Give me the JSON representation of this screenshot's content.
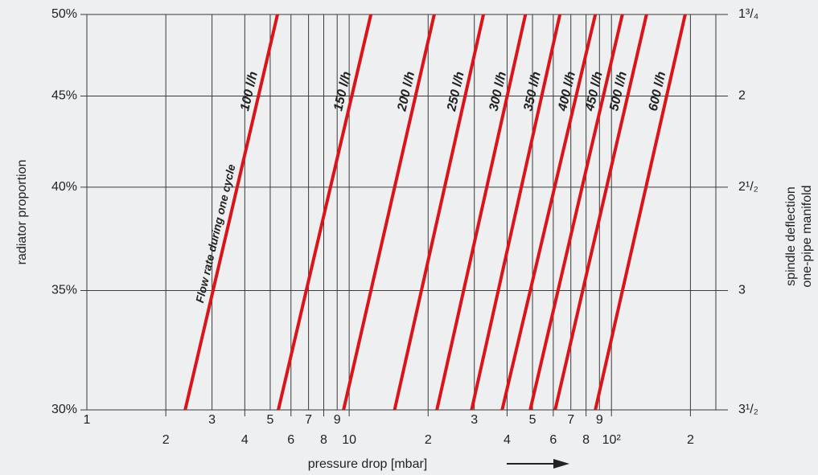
{
  "chart_data": {
    "type": "line",
    "xlabel": "pressure drop [mbar]",
    "ylabel": "radiator proportion",
    "y2label": [
      "spindle deflection",
      "one-pipe manifold"
    ],
    "xlog": true,
    "ylog": true,
    "grid": true,
    "xlim": [
      1,
      250
    ],
    "ylim": [
      30,
      50
    ],
    "xticks": [
      1,
      2,
      3,
      4,
      5,
      6,
      7,
      8,
      9,
      10,
      {
        "value": 20,
        "label": "2"
      },
      {
        "value": 30,
        "label": "3"
      },
      {
        "value": 40,
        "label": "4"
      },
      {
        "value": 50,
        "label": "5"
      },
      {
        "value": 60,
        "label": "6"
      },
      {
        "value": 70,
        "label": "7"
      },
      {
        "value": 80,
        "label": "8"
      },
      {
        "value": 90,
        "label": "9"
      },
      {
        "value": 100,
        "label": "10²"
      },
      {
        "value": 200,
        "label": "2"
      }
    ],
    "yticks": [
      {
        "value": 30,
        "label": "30%"
      },
      {
        "value": 35,
        "label": "35%"
      },
      {
        "value": 40,
        "label": "40%"
      },
      {
        "value": 45,
        "label": "45%"
      },
      {
        "value": 50,
        "label": "50%"
      }
    ],
    "y2_tick_labels": [
      "3¹/₂",
      "3",
      "2¹/₂",
      "2",
      "1³/₄"
    ],
    "annotation": "Flow rate during one cycle",
    "series": [
      {
        "name": "100 l/h",
        "color": "#d9141b",
        "x": [
          2.37,
          5.33
        ],
        "values": [
          30,
          50
        ]
      },
      {
        "name": "150 l/h",
        "color": "#d9141b",
        "x": [
          5.37,
          12.1
        ],
        "values": [
          30,
          50
        ]
      },
      {
        "name": "200 l/h",
        "color": "#d9141b",
        "x": [
          9.52,
          21.1
        ],
        "values": [
          30,
          50
        ]
      },
      {
        "name": "250 l/h",
        "color": "#d9141b",
        "x": [
          14.9,
          32.5
        ],
        "values": [
          30,
          50
        ]
      },
      {
        "name": "300 l/h",
        "color": "#d9141b",
        "x": [
          21.6,
          47.0
        ],
        "values": [
          30,
          50
        ]
      },
      {
        "name": "350 l/h",
        "color": "#d9141b",
        "x": [
          29.3,
          63.6
        ],
        "values": [
          30,
          50
        ]
      },
      {
        "name": "400 l/h",
        "color": "#d9141b",
        "x": [
          38.3,
          86.8
        ],
        "values": [
          30,
          50
        ]
      },
      {
        "name": "450 l/h",
        "color": "#d9141b",
        "x": [
          49.0,
          110
        ],
        "values": [
          30,
          50
        ]
      },
      {
        "name": "500 l/h",
        "color": "#d9141b",
        "x": [
          61.0,
          136
        ],
        "values": [
          30,
          50
        ]
      },
      {
        "name": "600 l/h",
        "color": "#d9141b",
        "x": [
          86.8,
          191
        ],
        "values": [
          30,
          50
        ]
      }
    ]
  }
}
